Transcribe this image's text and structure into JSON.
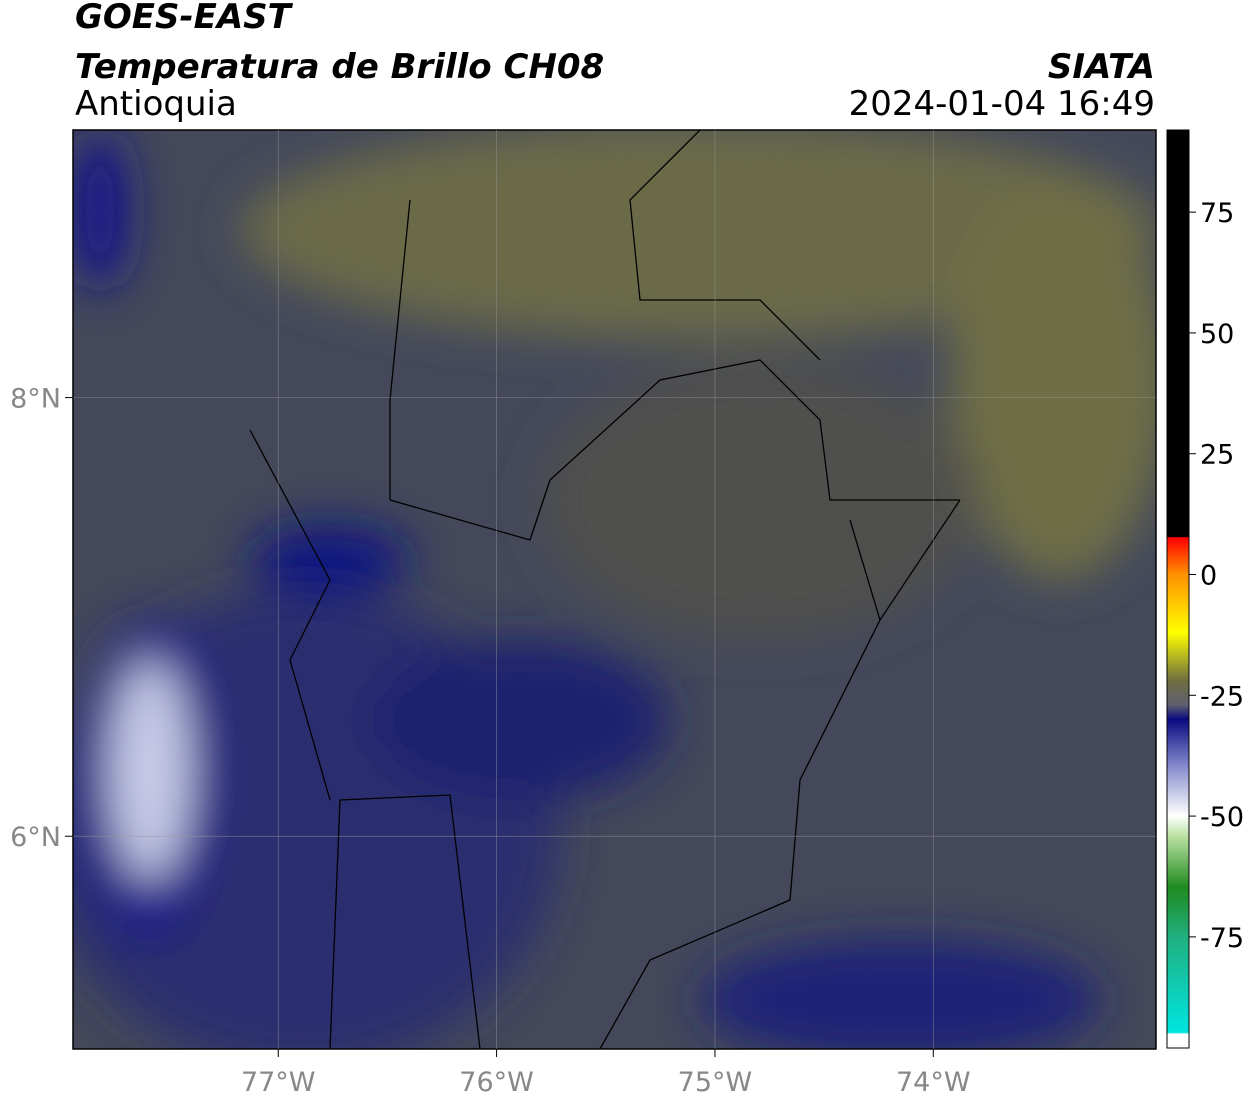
{
  "header": {
    "satellite": "GOES-EAST",
    "product": "Temperatura de Brillo CH08",
    "region": "Antioquia",
    "source": "SIATA",
    "datetime": "2024-01-04 16:49"
  },
  "map": {
    "xlim": [
      -77.94,
      -72.98
    ],
    "ylim": [
      5.03,
      9.22
    ],
    "xticks": [
      {
        "value": -77,
        "label": "77°W"
      },
      {
        "value": -76,
        "label": "76°W"
      },
      {
        "value": -75,
        "label": "75°W"
      },
      {
        "value": -74,
        "label": "74°W"
      }
    ],
    "yticks": [
      {
        "value": 6,
        "label": "6°N"
      },
      {
        "value": 8,
        "label": "8°N"
      }
    ],
    "grid": true
  },
  "colorbar": {
    "lim": [
      -98,
      92
    ],
    "ticks": [
      -75,
      -50,
      -25,
      0,
      25,
      50,
      75
    ]
  }
}
